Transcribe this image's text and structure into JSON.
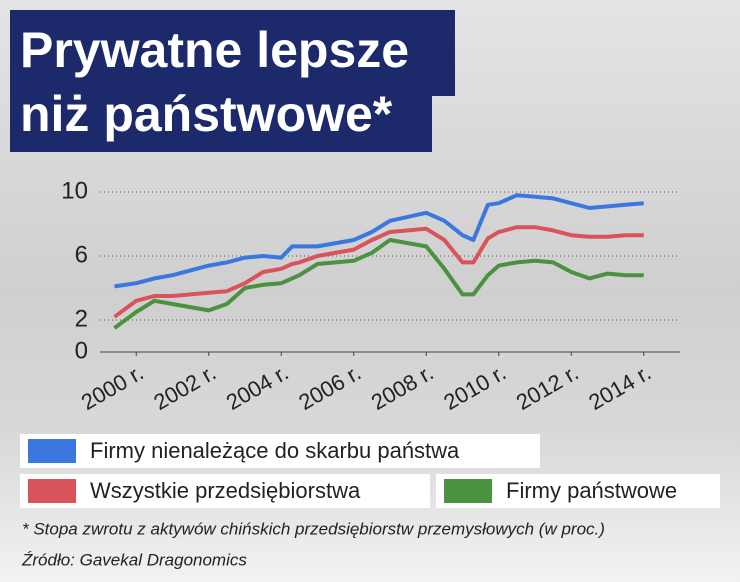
{
  "chart_data": {
    "type": "line",
    "title": [
      "Prywatne lepsze",
      "niż państwowe*"
    ],
    "note": "* Stopa zwrotu z aktywów chińskich przedsiębiorstw przemysłowych (w proc.)",
    "source": "Źródło: Gavekal Dragonomics",
    "x": [
      1999.4,
      2000,
      2000.5,
      2001,
      2002,
      2002.5,
      2003,
      2003.5,
      2004,
      2004.3,
      2004.5,
      2005,
      2006,
      2006.5,
      2007,
      2008,
      2008.5,
      2009,
      2009.3,
      2009.7,
      2010,
      2010.5,
      2011,
      2011.5,
      2012,
      2012.5,
      2013,
      2013.5,
      2014
    ],
    "series": [
      {
        "name": "Firmy nienależące do skarbu państwa",
        "color": "#3a78e0",
        "values": [
          4.1,
          4.3,
          4.6,
          4.8,
          5.4,
          5.6,
          5.9,
          6.0,
          5.9,
          6.6,
          6.6,
          6.6,
          7.0,
          7.5,
          8.2,
          8.7,
          8.2,
          7.3,
          7.0,
          9.2,
          9.3,
          9.8,
          9.7,
          9.6,
          9.3,
          9.0,
          9.1,
          9.2,
          9.3
        ]
      },
      {
        "name": "Wszystkie przedsiębiorstwa",
        "color": "#d9545a",
        "values": [
          2.2,
          3.2,
          3.5,
          3.5,
          3.7,
          3.8,
          4.3,
          5.0,
          5.2,
          5.5,
          5.6,
          6.0,
          6.4,
          7.0,
          7.5,
          7.7,
          7.0,
          5.6,
          5.6,
          7.1,
          7.5,
          7.8,
          7.8,
          7.6,
          7.3,
          7.2,
          7.2,
          7.3,
          7.3
        ]
      },
      {
        "name": "Firmy państwowe",
        "color": "#4a9140",
        "values": [
          1.5,
          2.5,
          3.2,
          3.0,
          2.6,
          3.0,
          4.0,
          4.2,
          4.3,
          4.6,
          4.8,
          5.5,
          5.7,
          6.2,
          7.0,
          6.6,
          5.2,
          3.6,
          3.6,
          4.8,
          5.4,
          5.6,
          5.7,
          5.6,
          5.0,
          4.6,
          4.9,
          4.8,
          4.8
        ]
      }
    ],
    "xlim": [
      1999,
      2015
    ],
    "xticks": [
      {
        "value": 2000,
        "label": "2000 r."
      },
      {
        "value": 2002,
        "label": "2002 r."
      },
      {
        "value": 2004,
        "label": "2004 r."
      },
      {
        "value": 2006,
        "label": "2006 r."
      },
      {
        "value": 2008,
        "label": "2008 r."
      },
      {
        "value": 2010,
        "label": "2010 r."
      },
      {
        "value": 2012,
        "label": "2012 r."
      },
      {
        "value": 2014,
        "label": "2014 r."
      }
    ],
    "ylim": [
      0,
      10
    ],
    "yticks": [
      0,
      2,
      6,
      10
    ],
    "grid": true
  }
}
